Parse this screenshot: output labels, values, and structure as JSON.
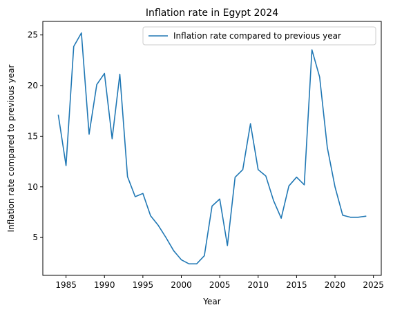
{
  "chart_data": {
    "type": "line",
    "title": "Inflation rate in Egypt 2024",
    "xlabel": "Year",
    "ylabel": "Inflation rate compared to previous year",
    "xlim": [
      1981.98,
      2026.02
    ],
    "ylim": [
      1.26,
      26.34
    ],
    "x_ticks": [
      1985,
      1990,
      1995,
      2000,
      2005,
      2010,
      2015,
      2020,
      2025
    ],
    "y_ticks": [
      5,
      10,
      15,
      20,
      25
    ],
    "grid": false,
    "legend_position": "top-right",
    "series": [
      {
        "name": "Inflation rate compared to previous year",
        "color": "#1f77b4",
        "x": [
          1984,
          1985,
          1986,
          1987,
          1988,
          1989,
          1990,
          1991,
          1992,
          1993,
          1994,
          1995,
          1996,
          1997,
          1998,
          1999,
          2000,
          2001,
          2002,
          2003,
          2004,
          2005,
          2006,
          2007,
          2008,
          2009,
          2010,
          2011,
          2012,
          2013,
          2014,
          2015,
          2016,
          2017,
          2018,
          2019,
          2020,
          2021,
          2022,
          2023,
          2024
        ],
        "y": [
          17.07,
          12.1,
          23.86,
          25.2,
          15.2,
          20.1,
          21.2,
          14.74,
          21.12,
          11.01,
          9.03,
          9.35,
          7.15,
          6.2,
          5.0,
          3.7,
          2.8,
          2.4,
          2.4,
          3.2,
          8.1,
          8.8,
          4.2,
          10.95,
          11.7,
          16.24,
          11.7,
          11.07,
          8.65,
          6.9,
          10.09,
          10.96,
          10.2,
          23.53,
          20.85,
          13.88,
          10.0,
          7.2,
          7.0,
          7.0,
          7.1
        ]
      }
    ]
  }
}
